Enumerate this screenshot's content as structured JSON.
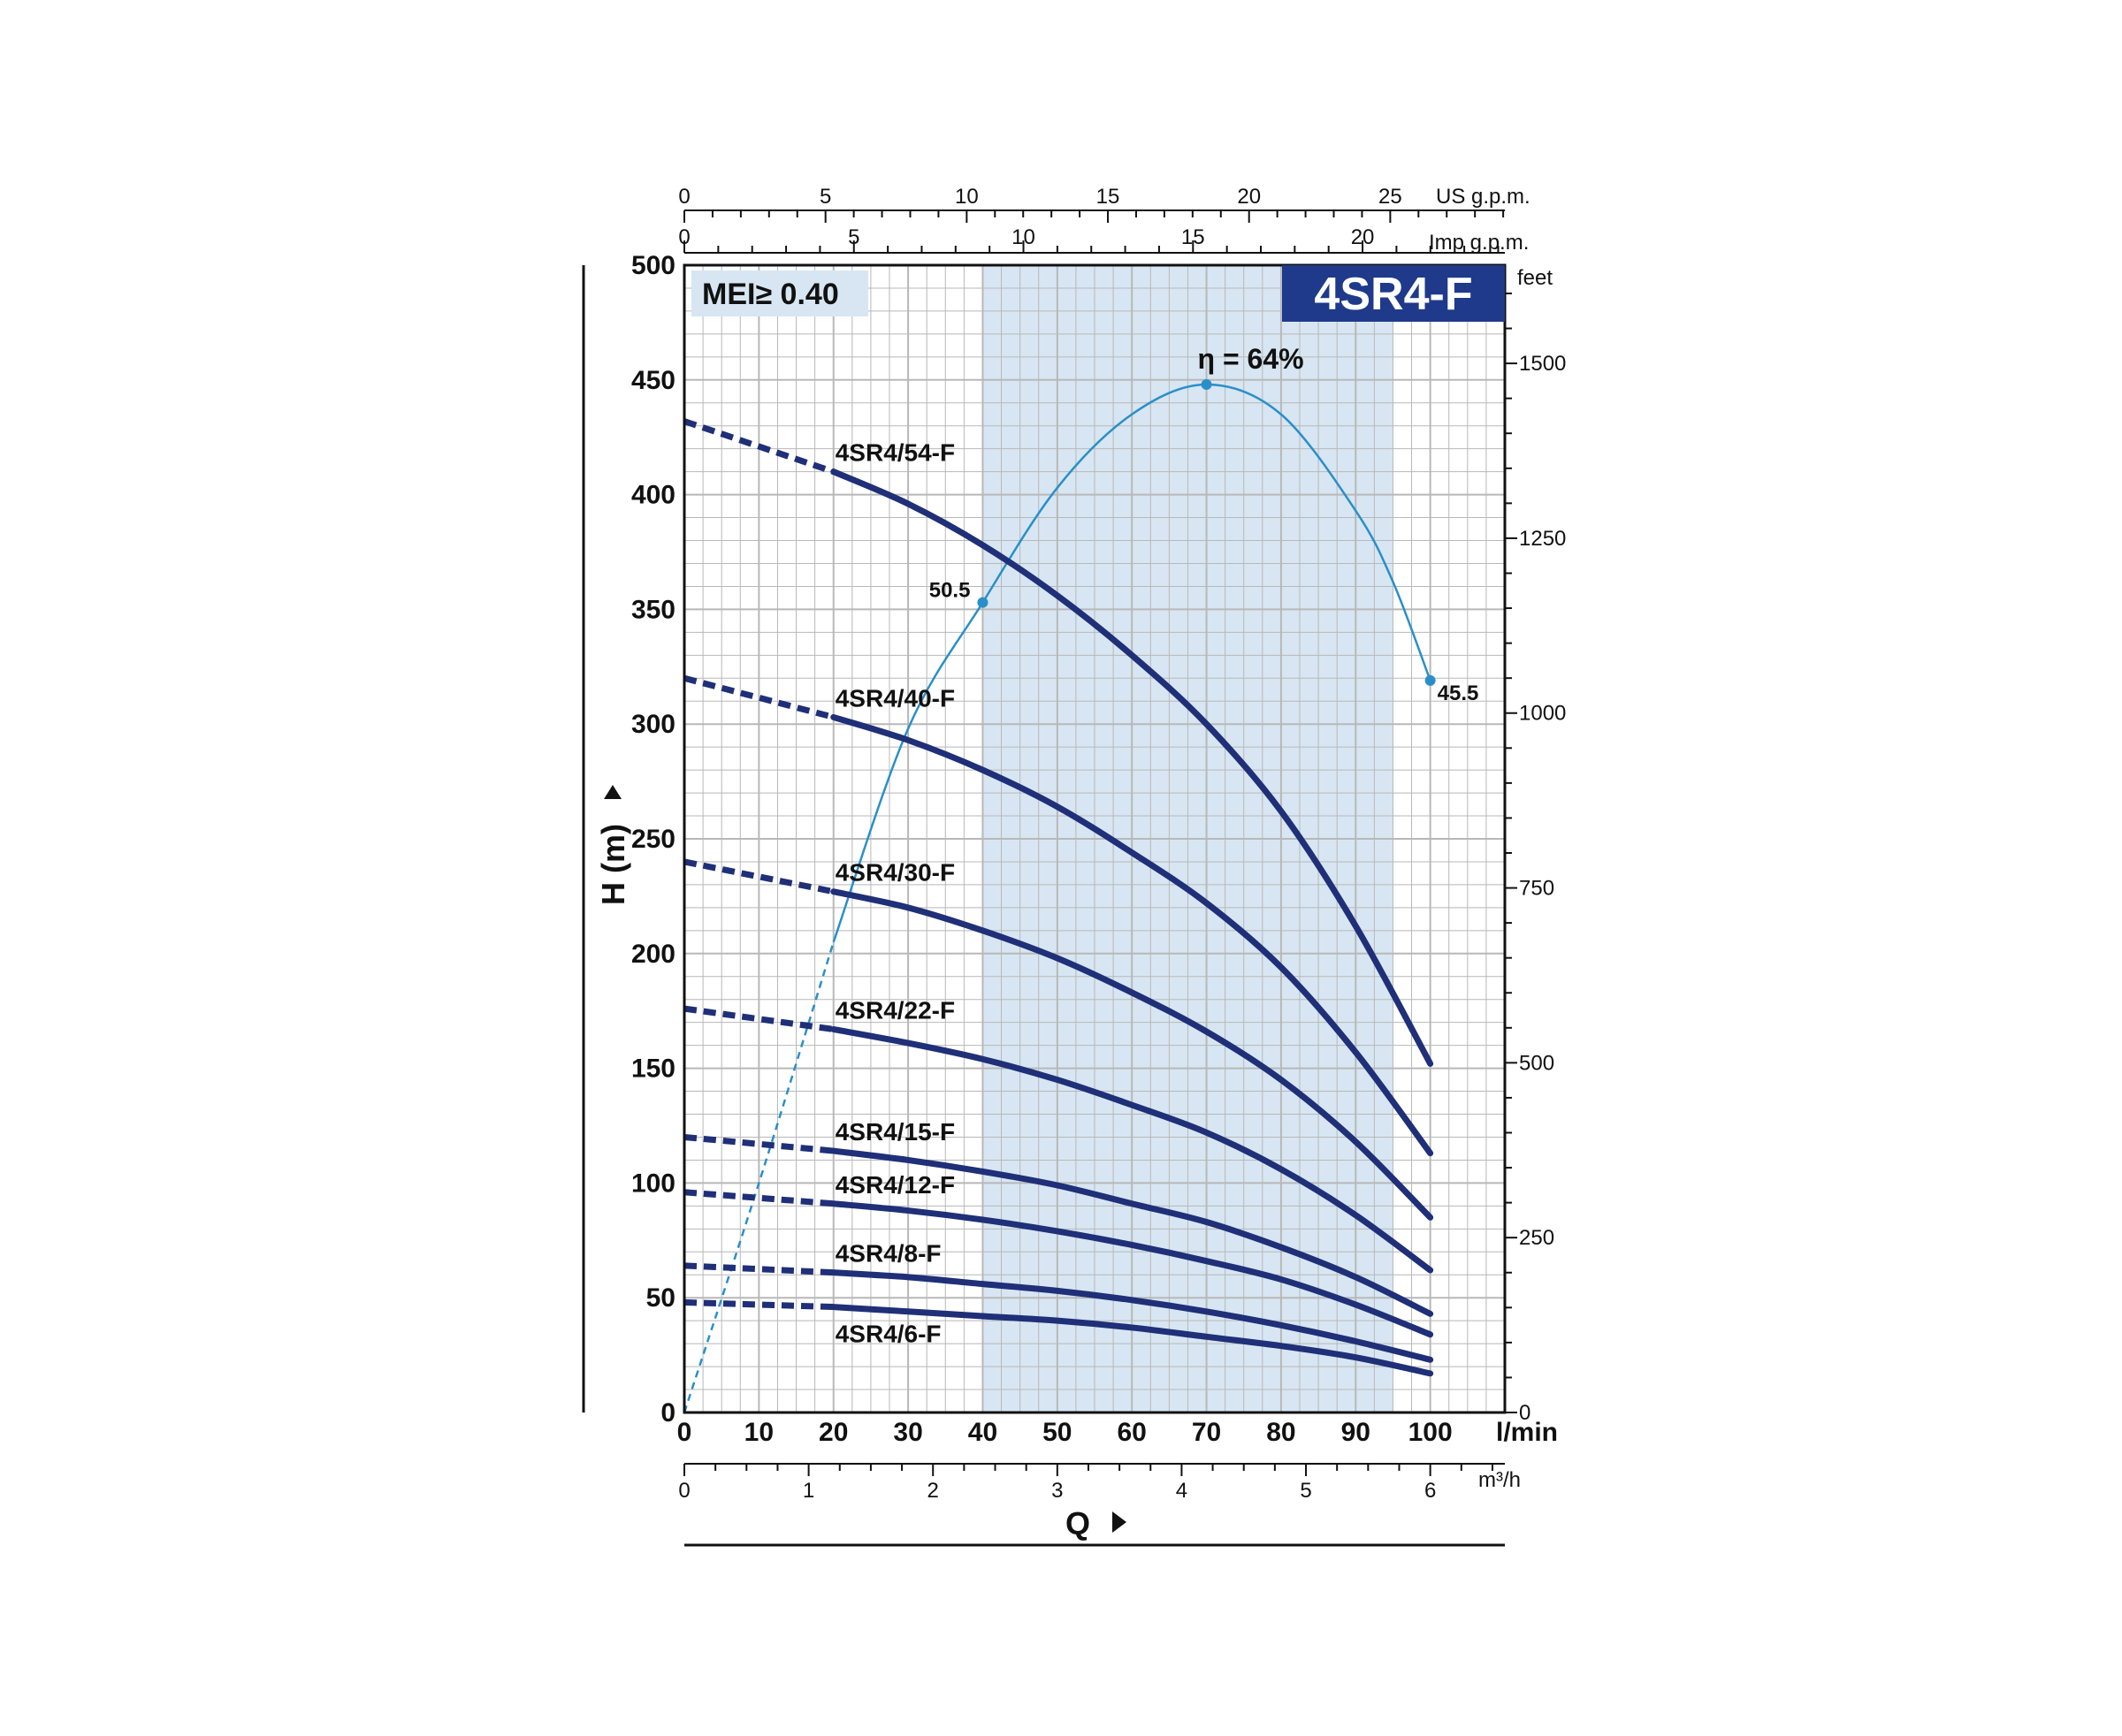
{
  "chart_data": {
    "type": "line",
    "title": "4SR4-F",
    "badge": "MEI≥ 0.40",
    "xlabel": "Q",
    "ylabel": "H (m)",
    "x_unit": "l/min",
    "xlim": [
      0,
      110
    ],
    "ylim": [
      0,
      500
    ],
    "x_ticks": [
      0,
      10,
      20,
      30,
      40,
      50,
      60,
      70,
      80,
      90,
      100
    ],
    "y_ticks": [
      0,
      50,
      100,
      150,
      200,
      250,
      300,
      350,
      400,
      450,
      500
    ],
    "secondary_axes": {
      "us_gpm": {
        "unit": "US g.p.m.",
        "ticks": [
          0,
          5,
          10,
          15,
          20,
          25
        ]
      },
      "imp_gpm": {
        "unit": "Imp g.p.m.",
        "ticks": [
          0,
          5,
          10,
          15,
          20
        ]
      },
      "m3h": {
        "unit": "m³/h",
        "ticks": [
          0,
          1,
          2,
          3,
          4,
          5,
          6
        ]
      },
      "feet": {
        "unit": "feet",
        "ticks": [
          0,
          250,
          500,
          750,
          1000,
          1250,
          1500
        ]
      }
    },
    "highlight_range_x": [
      40,
      95
    ],
    "grid": true,
    "series": [
      {
        "name": "4SR4/54-F",
        "x": [
          0,
          20,
          30,
          40,
          50,
          60,
          70,
          80,
          90,
          100
        ],
        "y": [
          432,
          410,
          396,
          378,
          356,
          330,
          300,
          262,
          212,
          152
        ]
      },
      {
        "name": "4SR4/40-F",
        "x": [
          0,
          20,
          30,
          40,
          50,
          60,
          70,
          80,
          90,
          100
        ],
        "y": [
          320,
          303,
          293,
          280,
          264,
          244,
          222,
          194,
          157,
          113
        ]
      },
      {
        "name": "4SR4/30-F",
        "x": [
          0,
          20,
          30,
          40,
          50,
          60,
          70,
          80,
          90,
          100
        ],
        "y": [
          240,
          227,
          220,
          210,
          198,
          183,
          166,
          145,
          118,
          85
        ]
      },
      {
        "name": "4SR4/22-F",
        "x": [
          0,
          20,
          30,
          40,
          50,
          60,
          70,
          80,
          90,
          100
        ],
        "y": [
          176,
          167,
          161,
          154,
          145,
          134,
          122,
          106,
          86,
          62
        ]
      },
      {
        "name": "4SR4/15-F",
        "x": [
          0,
          20,
          30,
          40,
          50,
          60,
          70,
          80,
          90,
          100
        ],
        "y": [
          120,
          114,
          110,
          105,
          99,
          91,
          83,
          72,
          59,
          43
        ]
      },
      {
        "name": "4SR4/12-F",
        "x": [
          0,
          20,
          30,
          40,
          50,
          60,
          70,
          80,
          90,
          100
        ],
        "y": [
          96,
          91,
          88,
          84,
          79,
          73,
          66,
          58,
          47,
          34
        ]
      },
      {
        "name": "4SR4/8-F",
        "x": [
          0,
          20,
          30,
          40,
          50,
          60,
          70,
          80,
          90,
          100
        ],
        "y": [
          64,
          61,
          59,
          56,
          53,
          49,
          44,
          38,
          31,
          23
        ]
      },
      {
        "name": "4SR4/6-F",
        "x": [
          0,
          20,
          30,
          40,
          50,
          60,
          70,
          80,
          90,
          100
        ],
        "y": [
          48,
          46,
          44,
          42,
          40,
          37,
          33,
          29,
          24,
          17
        ]
      }
    ],
    "efficiency_curve": {
      "x": [
        0,
        10,
        20,
        30,
        40,
        50,
        60,
        70,
        80,
        90,
        95,
        100
      ],
      "y": [
        0,
        100,
        205,
        298,
        353,
        403,
        435,
        448,
        435,
        393,
        362,
        319
      ],
      "peak_label": "η = 64%",
      "peak_x": 70,
      "point_labels": [
        {
          "x": 40,
          "y": 353,
          "text": "50.5"
        },
        {
          "x": 100,
          "y": 319,
          "text": "45.5"
        }
      ]
    },
    "colors": {
      "curve": "#1f2f78",
      "efficiency": "#2a8fc9",
      "highlight": "#d7e6f2",
      "grid": "#b8b8b8",
      "title_bg": "#1f3a8a"
    }
  }
}
